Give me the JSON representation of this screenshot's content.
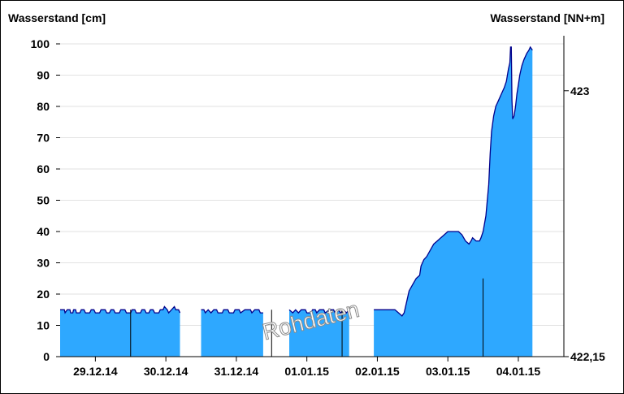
{
  "chart_data": {
    "type": "area",
    "ylabel_left": "Wasserstand [cm]",
    "ylabel_right": "Wasserstand [NN+m]",
    "ylim": [
      0,
      100
    ],
    "yticks": [
      0,
      10,
      20,
      30,
      40,
      50,
      60,
      70,
      80,
      90,
      100
    ],
    "right_axis_ticks": [
      {
        "label": "423",
        "value_cm": 85
      },
      {
        "label": "422,15",
        "value_cm": 0
      }
    ],
    "xlim": [
      0,
      6.95
    ],
    "xticks": [
      {
        "x": 0.5,
        "label": "29.12.14"
      },
      {
        "x": 1.5,
        "label": "30.12.14"
      },
      {
        "x": 2.5,
        "label": "31.12.14"
      },
      {
        "x": 3.5,
        "label": "01.01.15"
      },
      {
        "x": 4.5,
        "label": "02.01.15"
      },
      {
        "x": 5.5,
        "label": "03.01.15"
      },
      {
        "x": 6.5,
        "label": "04.01.15"
      }
    ],
    "day_markers": [
      1,
      3,
      4,
      6
    ],
    "grid": true,
    "fill_color": "#2ea8ff",
    "line_color": "#00008b",
    "watermark": "Rohdaten",
    "series": [
      {
        "segments": [
          {
            "points": [
              [
                0.0,
                15
              ],
              [
                0.06,
                15
              ],
              [
                0.07,
                14
              ],
              [
                0.1,
                15
              ],
              [
                0.14,
                15
              ],
              [
                0.15,
                14
              ],
              [
                0.18,
                14
              ],
              [
                0.19,
                15
              ],
              [
                0.22,
                15
              ],
              [
                0.23,
                14
              ],
              [
                0.28,
                14
              ],
              [
                0.3,
                15
              ],
              [
                0.34,
                15
              ],
              [
                0.36,
                14
              ],
              [
                0.42,
                14
              ],
              [
                0.44,
                15
              ],
              [
                0.48,
                15
              ],
              [
                0.5,
                14
              ],
              [
                0.56,
                14
              ],
              [
                0.58,
                15
              ],
              [
                0.64,
                15
              ],
              [
                0.66,
                14
              ],
              [
                0.7,
                14
              ],
              [
                0.72,
                15
              ],
              [
                0.76,
                15
              ],
              [
                0.78,
                14
              ],
              [
                0.84,
                14
              ],
              [
                0.86,
                15
              ],
              [
                0.92,
                15
              ],
              [
                0.94,
                14
              ],
              [
                1.0,
                14
              ],
              [
                1.02,
                15
              ],
              [
                1.06,
                15
              ],
              [
                1.08,
                14
              ],
              [
                1.14,
                14
              ],
              [
                1.16,
                15
              ],
              [
                1.2,
                15
              ],
              [
                1.22,
                14
              ],
              [
                1.26,
                14
              ],
              [
                1.28,
                15
              ],
              [
                1.32,
                15
              ],
              [
                1.34,
                14
              ],
              [
                1.4,
                14
              ],
              [
                1.42,
                15
              ],
              [
                1.46,
                15
              ],
              [
                1.48,
                16
              ],
              [
                1.52,
                15
              ],
              [
                1.54,
                14
              ],
              [
                1.58,
                15
              ],
              [
                1.62,
                16
              ],
              [
                1.64,
                15
              ],
              [
                1.68,
                15
              ],
              [
                1.7,
                14
              ]
            ]
          },
          {
            "points": [
              [
                2.0,
                15
              ],
              [
                2.04,
                15
              ],
              [
                2.06,
                14
              ],
              [
                2.1,
                15
              ],
              [
                2.14,
                14
              ],
              [
                2.18,
                15
              ],
              [
                2.22,
                15
              ],
              [
                2.24,
                14
              ],
              [
                2.3,
                14
              ],
              [
                2.32,
                15
              ],
              [
                2.38,
                15
              ],
              [
                2.4,
                14
              ],
              [
                2.46,
                14
              ],
              [
                2.48,
                15
              ],
              [
                2.54,
                15
              ],
              [
                2.56,
                14
              ],
              [
                2.62,
                15
              ],
              [
                2.7,
                15
              ],
              [
                2.72,
                14
              ],
              [
                2.76,
                15
              ],
              [
                2.82,
                15
              ],
              [
                2.84,
                14
              ],
              [
                2.88,
                14
              ]
            ]
          },
          {
            "points": [
              [
                3.25,
                15
              ],
              [
                3.3,
                14
              ],
              [
                3.34,
                15
              ],
              [
                3.38,
                14
              ],
              [
                3.42,
                15
              ],
              [
                3.48,
                15
              ],
              [
                3.5,
                14
              ],
              [
                3.56,
                14
              ],
              [
                3.58,
                15
              ],
              [
                3.62,
                15
              ],
              [
                3.64,
                14
              ],
              [
                3.68,
                15
              ],
              [
                3.74,
                15
              ],
              [
                3.76,
                14
              ],
              [
                3.82,
                15
              ],
              [
                3.88,
                15
              ],
              [
                3.9,
                14
              ],
              [
                3.94,
                15
              ],
              [
                3.98,
                14
              ],
              [
                4.02,
                15
              ],
              [
                4.06,
                14
              ],
              [
                4.1,
                15
              ]
            ]
          },
          {
            "points": [
              [
                4.45,
                15
              ],
              [
                4.6,
                15
              ],
              [
                4.75,
                15
              ],
              [
                4.8,
                14
              ],
              [
                4.85,
                13
              ],
              [
                4.88,
                14
              ],
              [
                4.92,
                18
              ],
              [
                4.95,
                21
              ],
              [
                5.0,
                23
              ],
              [
                5.05,
                25
              ],
              [
                5.1,
                26
              ],
              [
                5.12,
                29
              ],
              [
                5.16,
                31
              ],
              [
                5.2,
                32
              ],
              [
                5.25,
                34
              ],
              [
                5.3,
                36
              ],
              [
                5.35,
                37
              ],
              [
                5.4,
                38
              ],
              [
                5.45,
                39
              ],
              [
                5.5,
                40
              ],
              [
                5.55,
                40
              ],
              [
                5.6,
                40
              ],
              [
                5.65,
                40
              ],
              [
                5.7,
                39
              ],
              [
                5.75,
                37
              ],
              [
                5.8,
                36
              ],
              [
                5.83,
                37
              ],
              [
                5.85,
                38
              ],
              [
                5.9,
                37
              ],
              [
                5.95,
                37
              ],
              [
                5.97,
                38
              ],
              [
                6.0,
                40
              ],
              [
                6.04,
                45
              ],
              [
                6.08,
                55
              ],
              [
                6.1,
                65
              ],
              [
                6.12,
                72
              ],
              [
                6.15,
                77
              ],
              [
                6.18,
                80
              ],
              [
                6.22,
                82
              ],
              [
                6.26,
                84
              ],
              [
                6.3,
                86
              ],
              [
                6.33,
                88
              ],
              [
                6.36,
                92
              ],
              [
                6.38,
                94
              ],
              [
                6.39,
                99
              ],
              [
                6.4,
                99
              ],
              [
                6.41,
                82
              ],
              [
                6.42,
                76
              ],
              [
                6.44,
                77
              ],
              [
                6.46,
                80
              ],
              [
                6.48,
                84
              ],
              [
                6.5,
                87
              ],
              [
                6.52,
                90
              ],
              [
                6.55,
                93
              ],
              [
                6.58,
                95
              ],
              [
                6.62,
                97
              ],
              [
                6.65,
                98
              ],
              [
                6.67,
                99
              ],
              [
                6.7,
                98
              ]
            ]
          }
        ]
      }
    ]
  }
}
